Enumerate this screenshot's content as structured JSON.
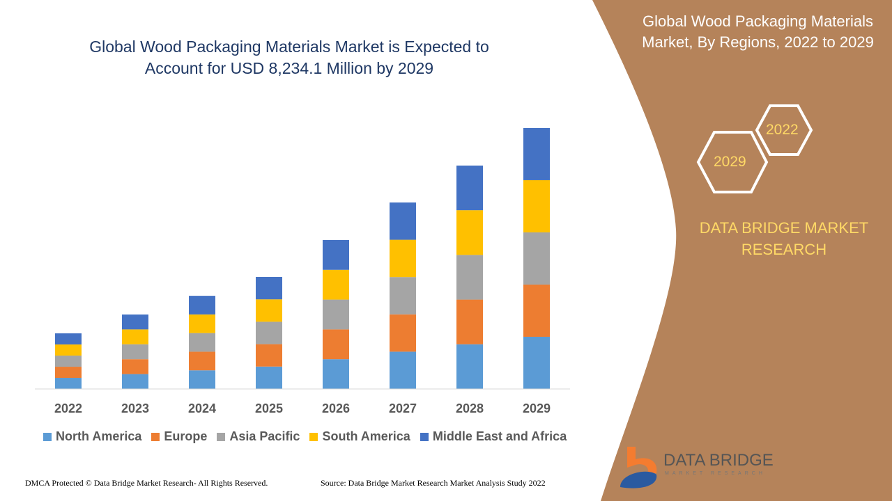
{
  "title_line1": "Global Wood Packaging Materials Market is Expected to",
  "title_line2": "Account for USD 8,234.1 Million by 2029",
  "side": {
    "title_line1": "Global Wood Packaging Materials",
    "title_line2": "Market, By Regions, 2022 to 2029",
    "hex_top": "2022",
    "hex_bottom": "2029",
    "brand_line1": "DATA BRIDGE MARKET",
    "brand_line2": "RESEARCH",
    "logo_name": "DATA BRIDGE",
    "logo_sub": "MARKET RESEARCH"
  },
  "footer": {
    "left": "DMCA Protected © Data Bridge Market Research- All Rights Reserved.",
    "right": "Source: Data Bridge Market Research Market Analysis Study 2022"
  },
  "colors": {
    "panel": "#b5835a",
    "accent": "#ffd966"
  },
  "chart_data": {
    "type": "bar",
    "stacked": true,
    "categories": [
      "2022",
      "2023",
      "2024",
      "2025",
      "2026",
      "2027",
      "2028",
      "2029"
    ],
    "series": [
      {
        "name": "North America",
        "color": "#5b9bd5",
        "values": [
          351,
          470,
          588,
          707,
          940,
          1177,
          1410,
          1647
        ]
      },
      {
        "name": "Europe",
        "color": "#ed7d31",
        "values": [
          351,
          470,
          588,
          707,
          940,
          1177,
          1410,
          1647
        ]
      },
      {
        "name": "Asia Pacific",
        "color": "#a5a5a5",
        "values": [
          351,
          470,
          588,
          707,
          940,
          1177,
          1410,
          1647
        ]
      },
      {
        "name": "South America",
        "color": "#ffc000",
        "values": [
          351,
          470,
          588,
          707,
          940,
          1177,
          1410,
          1647
        ]
      },
      {
        "name": "Middle East and Africa",
        "color": "#4472c4",
        "values": [
          351,
          470,
          588,
          707,
          940,
          1177,
          1410,
          1647
        ]
      }
    ],
    "unit": "USD Million",
    "ylim": [
      0,
      8234.1
    ],
    "grid": false,
    "legend": "bottom"
  }
}
